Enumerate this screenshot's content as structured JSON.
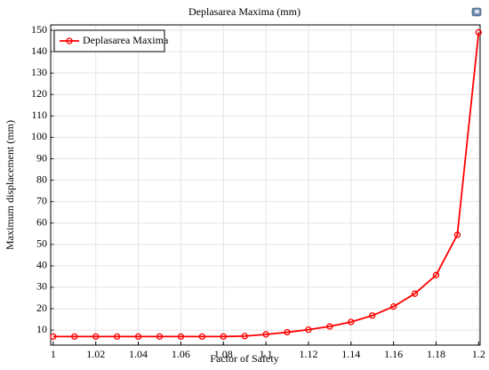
{
  "chart_data": {
    "type": "line",
    "title": "Deplasarea Maxima (mm)",
    "x_label": "Factor of Safety",
    "y_label": "Maximum displacement (mm)",
    "x": [
      1,
      1.01,
      1.02,
      1.03,
      1.04,
      1.05,
      1.06,
      1.07,
      1.08,
      1.09,
      1.1,
      1.11,
      1.12,
      1.13,
      1.14,
      1.15,
      1.16,
      1.17,
      1.18,
      1.19,
      1.2
    ],
    "series": [
      {
        "name": "Deplasarea Maxima",
        "color": "#ff0000",
        "values": [
          7,
          7,
          7,
          7,
          7,
          7,
          7,
          7,
          7,
          7.2,
          8,
          9,
          10.2,
          11.7,
          13.8,
          16.8,
          21,
          27,
          35.7,
          54.5,
          149
        ]
      }
    ],
    "xlim": [
      0.9988,
      1.2007
    ],
    "xticks": [
      1,
      1.02,
      1.04,
      1.06,
      1.08,
      1.1,
      1.12,
      1.14,
      1.16,
      1.18,
      1.2
    ],
    "ylim": [
      3,
      152.5
    ],
    "yticks": [
      10,
      20,
      30,
      40,
      50,
      60,
      70,
      80,
      90,
      100,
      110,
      120,
      130,
      140,
      150
    ],
    "grid": true,
    "legend": "upper-left"
  }
}
